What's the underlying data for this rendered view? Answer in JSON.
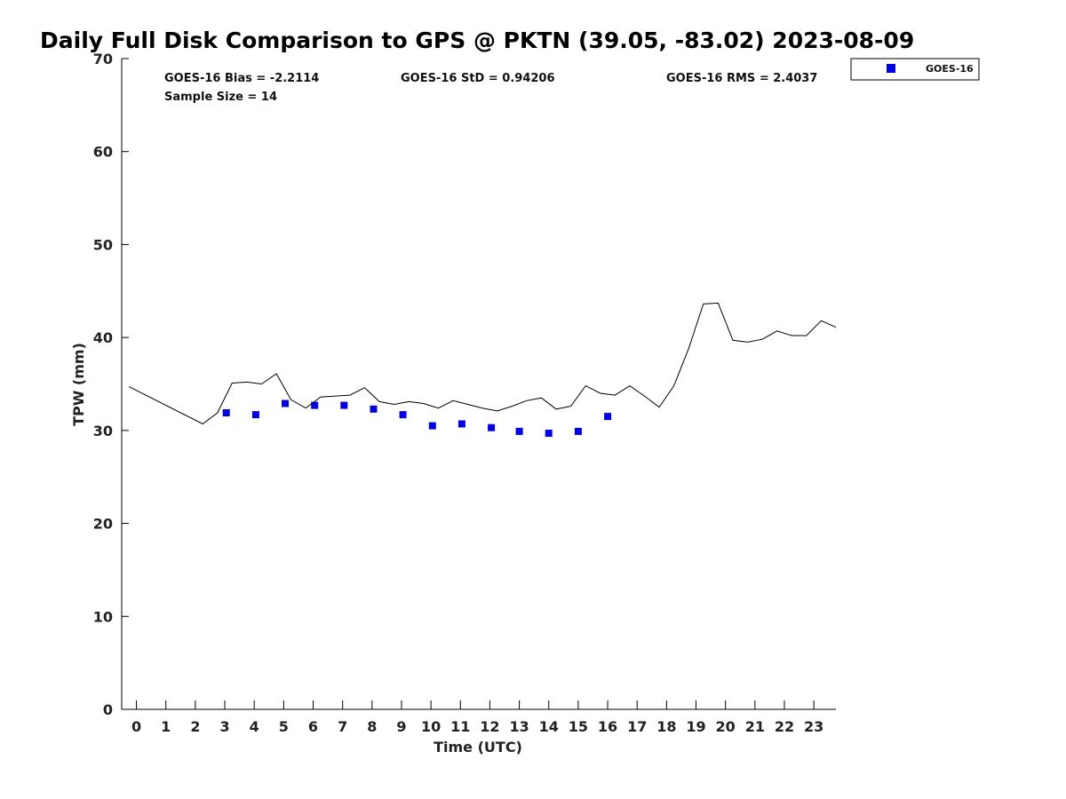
{
  "chart_data": {
    "type": "scatter",
    "title": "Daily Full Disk Comparison to GPS @ PKTN (39.05, -83.02) 2023-08-09",
    "xlabel": "Time (UTC)",
    "ylabel": "TPW (mm)",
    "xlim": [
      -0.5,
      23.75
    ],
    "ylim": [
      0,
      70
    ],
    "x_ticks": [
      "0",
      "1",
      "2",
      "3",
      "4",
      "5",
      "6",
      "7",
      "8",
      "9",
      "10",
      "11",
      "12",
      "13",
      "14",
      "15",
      "16",
      "17",
      "18",
      "19",
      "20",
      "21",
      "22",
      "23"
    ],
    "y_ticks": [
      "0",
      "10",
      "20",
      "30",
      "40",
      "50",
      "60",
      "70"
    ],
    "legend_position": "top-right, outside plot",
    "grid": false,
    "stats": {
      "bias": "GOES-16 Bias = -2.2114",
      "std": "GOES-16 StD = 0.94206",
      "rms": "GOES-16 RMS = 2.4037",
      "sample": "Sample Size = 14"
    },
    "series": [
      {
        "name": "GOES-16",
        "kind": "scatter",
        "color": "#0000e0",
        "marker": "square",
        "x": [
          3.05,
          4.05,
          5.05,
          6.05,
          7.05,
          8.05,
          9.05,
          10.05,
          11.05,
          12.05,
          13.0,
          14.0,
          15.0,
          16.0
        ],
        "y": [
          31.9,
          31.7,
          32.9,
          32.7,
          32.7,
          32.3,
          31.7,
          30.5,
          30.7,
          30.3,
          29.9,
          29.7,
          29.9,
          31.5
        ]
      },
      {
        "kind": "line",
        "color": "#000000",
        "x": [
          -0.25,
          2.25,
          2.75,
          3.25,
          3.75,
          4.25,
          4.75,
          5.25,
          5.75,
          6.25,
          6.75,
          7.25,
          7.75,
          8.25,
          8.75,
          9.25,
          9.75,
          10.25,
          10.75,
          11.25,
          11.75,
          12.25,
          12.75,
          13.25,
          13.75,
          14.25,
          14.75,
          15.25,
          15.75,
          16.25,
          16.75,
          17.25,
          17.75,
          18.25,
          18.75,
          19.25,
          19.75,
          20.25,
          20.75,
          21.25,
          21.75,
          22.25,
          22.75,
          23.25,
          23.75
        ],
        "y": [
          34.7,
          30.7,
          31.9,
          35.1,
          35.2,
          35.0,
          36.1,
          33.3,
          32.4,
          33.6,
          33.7,
          33.8,
          34.6,
          33.1,
          32.8,
          33.1,
          32.9,
          32.4,
          33.2,
          32.8,
          32.4,
          32.1,
          32.6,
          33.2,
          33.5,
          32.3,
          32.6,
          34.8,
          34.0,
          33.8,
          34.8,
          33.7,
          32.5,
          34.8,
          38.8,
          43.6,
          43.7,
          39.7,
          39.5,
          39.8,
          40.7,
          40.2,
          40.2,
          41.8,
          41.1
        ]
      }
    ]
  }
}
